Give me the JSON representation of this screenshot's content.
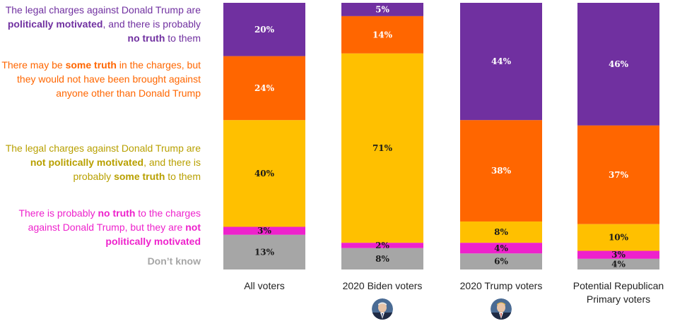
{
  "chart_data": {
    "type": "bar",
    "stacked": "100%",
    "orientation": "vertical",
    "categories": [
      [
        "All voters"
      ],
      [
        "2020 Biden voters"
      ],
      [
        "2020 Trump voters"
      ],
      [
        "Potential Republican",
        "Primary voters"
      ]
    ],
    "series": [
      {
        "key": "political_no_truth",
        "color": "#7030a0",
        "label_color": "#ffffff",
        "legend_parts": [
          {
            "t": "The legal charges against Donald Trump are ",
            "b": false
          },
          {
            "t": "politically motivated",
            "b": true
          },
          {
            "t": ", and there is probably ",
            "b": false
          },
          {
            "t": "no truth",
            "b": true
          },
          {
            "t": " to them",
            "b": false
          }
        ],
        "values": [
          20,
          5,
          44,
          46
        ],
        "labels": [
          "20%",
          "5%",
          "44%",
          "46%"
        ]
      },
      {
        "key": "some_truth_only_trump",
        "color": "#ff6600",
        "label_color": "#ffffff",
        "legend_parts": [
          {
            "t": "There may be ",
            "b": false
          },
          {
            "t": "some truth",
            "b": true
          },
          {
            "t": " in the charges, but they would not have been brought against anyone other than Donald Trump",
            "b": false
          }
        ],
        "values": [
          24,
          14,
          38,
          37
        ],
        "labels": [
          "24%",
          "14%",
          "38%",
          "37%"
        ]
      },
      {
        "key": "not_political_some_truth",
        "color": "#ffc000",
        "label_color": "#1a1a1a",
        "legend_parts": [
          {
            "t": "The legal charges against Donald Trump are ",
            "b": false
          },
          {
            "t": "not politically motivated",
            "b": true
          },
          {
            "t": ", and there is probably ",
            "b": false
          },
          {
            "t": "some truth",
            "b": true
          },
          {
            "t": " to them",
            "b": false
          }
        ],
        "values": [
          40,
          71,
          8,
          10
        ],
        "labels": [
          "40%",
          "71%",
          "8%",
          "10%"
        ]
      },
      {
        "key": "no_truth_not_political",
        "color": "#ee22cc",
        "label_color": "#1a1a1a",
        "legend_parts": [
          {
            "t": "There is probably ",
            "b": false
          },
          {
            "t": "no truth",
            "b": true
          },
          {
            "t": " to the charges against Donald Trump, but they are ",
            "b": false
          },
          {
            "t": "not politically motivated",
            "b": true
          }
        ],
        "values": [
          3,
          2,
          4,
          3
        ],
        "labels": [
          "3%",
          "2%",
          "4%",
          "3%"
        ]
      },
      {
        "key": "dont_know",
        "color": "#a6a6a6",
        "label_color": "#1a1a1a",
        "legend_parts": [
          {
            "t": "Don’t know",
            "b": true
          }
        ],
        "values": [
          13,
          8,
          6,
          4
        ],
        "labels": [
          "13%",
          "8%",
          "6%",
          "4%"
        ]
      }
    ],
    "legend_position": "left",
    "category_icons": [
      "",
      "biden-photo-icon",
      "trump-photo-icon",
      ""
    ]
  }
}
